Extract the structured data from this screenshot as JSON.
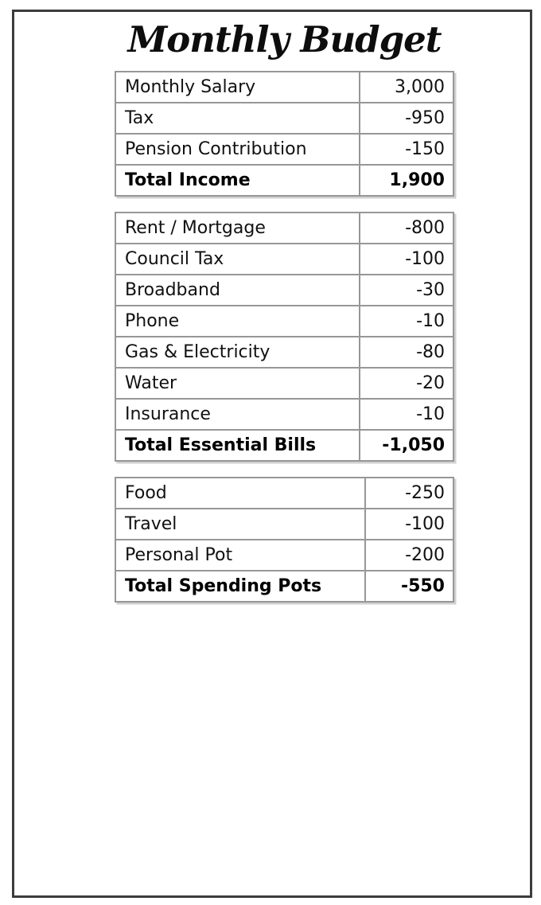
{
  "page": {
    "title": "Monthly Budget"
  },
  "colors": {
    "background": "#ffffff",
    "text": "#111111",
    "table_border": "#979797",
    "page_border": "#3c3c3c"
  },
  "tables": [
    {
      "name": "income",
      "rows": [
        {
          "label": "Monthly Salary",
          "value": "3,000"
        },
        {
          "label": "Tax",
          "value": "-950"
        },
        {
          "label": "Pension Contribution",
          "value": "-150"
        },
        {
          "label": "Total Income",
          "value": "1,900"
        }
      ]
    },
    {
      "name": "essential-bills",
      "rows": [
        {
          "label": "Rent / Mortgage",
          "value": "-800"
        },
        {
          "label": "Council Tax",
          "value": "-100"
        },
        {
          "label": "Broadband",
          "value": "-30"
        },
        {
          "label": "Phone",
          "value": "-10"
        },
        {
          "label": "Gas & Electricity",
          "value": "-80"
        },
        {
          "label": "Water",
          "value": "-20"
        },
        {
          "label": "Insurance",
          "value": "-10"
        },
        {
          "label": "Total Essential Bills",
          "value": "-1,050"
        }
      ]
    },
    {
      "name": "spending-pots",
      "rows": [
        {
          "label": "Food",
          "value": "-250"
        },
        {
          "label": "Travel",
          "value": "-100"
        },
        {
          "label": "Personal Pot",
          "value": "-200"
        },
        {
          "label": "Total Spending Pots",
          "value": "-550"
        }
      ]
    }
  ]
}
